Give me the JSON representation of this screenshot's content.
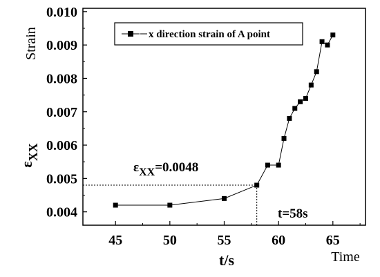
{
  "chart_data": {
    "type": "line",
    "xlim": [
      42,
      68
    ],
    "ylim": [
      0.0036,
      0.0101
    ],
    "x_ticks": [
      45,
      50,
      55,
      60,
      65
    ],
    "y_ticks": [
      0.004,
      0.005,
      0.006,
      0.007,
      0.008,
      0.009,
      0.01
    ],
    "x_tick_labels": [
      "45",
      "50",
      "55",
      "60",
      "65"
    ],
    "y_tick_labels": [
      "0.004",
      "0.005",
      "0.006",
      "0.007",
      "0.008",
      "0.009",
      "0.010"
    ],
    "xlabel": "t/s",
    "ylabel": "ε",
    "ylabel_sub": "XX",
    "x_corner_label": "Time",
    "y_corner_label": "Strain",
    "legend": "top-center",
    "grid": false,
    "series": [
      {
        "name": "x direction strain of A point",
        "color": "#000000",
        "marker": "square",
        "x": [
          45,
          50,
          55,
          58,
          59,
          60,
          60.5,
          61,
          61.5,
          62,
          62.5,
          63,
          63.5,
          64,
          64.5,
          65
        ],
        "y": [
          0.0042,
          0.0042,
          0.0044,
          0.0048,
          0.0054,
          0.0054,
          0.0062,
          0.0068,
          0.0071,
          0.0073,
          0.0074,
          0.0078,
          0.0082,
          0.0091,
          0.009,
          0.0093
        ]
      }
    ],
    "annotations": [
      {
        "text_prefix": "ε",
        "text_sub": "XX",
        "text_suffix": "=0.0048"
      },
      {
        "text": "t=58s"
      }
    ],
    "reference_point": {
      "x": 58,
      "y": 0.0048
    }
  }
}
